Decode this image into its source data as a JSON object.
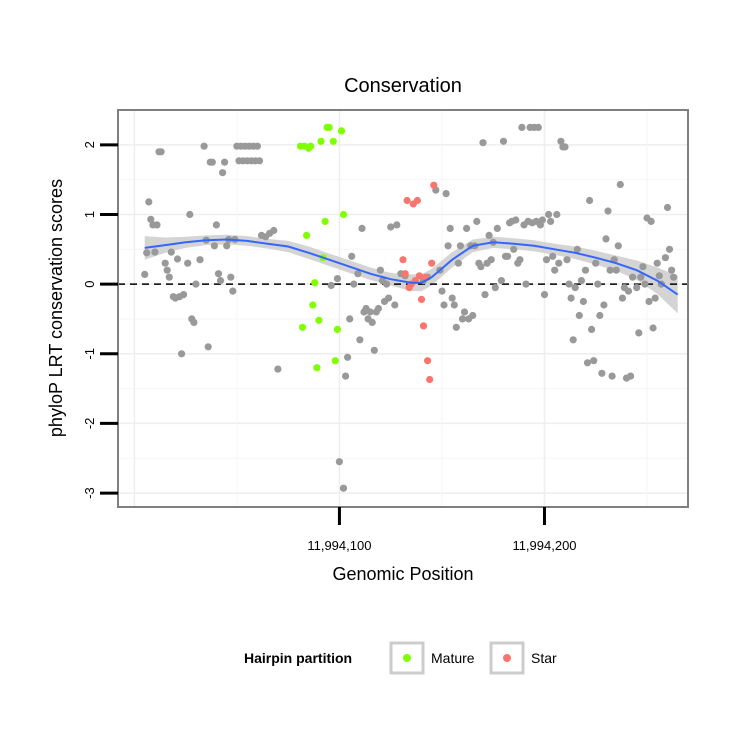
{
  "chart_data": {
    "type": "scatter",
    "title": "Conservation",
    "xlabel": "Genomic Position",
    "ylabel": "phyloP LRT conservation scores",
    "xlim": [
      11993992,
      11994270
    ],
    "ylim": [
      -3.2,
      2.5
    ],
    "x_ticks": [
      11994100,
      11994200
    ],
    "x_tick_labels": [
      "11,994,100",
      "11,994,200"
    ],
    "y_ticks": [
      -3,
      -2,
      -1,
      0,
      1,
      2
    ],
    "y_tick_labels": [
      "-3",
      "-2",
      "-1",
      "0",
      "1",
      "2"
    ],
    "reference_line": {
      "y": 0,
      "style": "dashed"
    },
    "grid": true,
    "legend": {
      "title": "Hairpin partition",
      "position": "bottom",
      "entries": [
        {
          "label": "Mature",
          "color": "#7fff00"
        },
        {
          "label": "Star",
          "color": "#f8766d"
        }
      ]
    },
    "colors": {
      "other": "#999999",
      "mature": "#7fff00",
      "star": "#f8766d",
      "smooth": "#3366ff",
      "ribbon": "#cccccc"
    },
    "series": [
      {
        "name": "Other",
        "points": [
          [
            11994005,
            0.14
          ],
          [
            11994006,
            0.45
          ],
          [
            11994007,
            1.18
          ],
          [
            11994008,
            0.93
          ],
          [
            11994009,
            0.85
          ],
          [
            11994010,
            0.46
          ],
          [
            11994011,
            0.85
          ],
          [
            11994012,
            1.9
          ],
          [
            11994013,
            1.9
          ],
          [
            11994015,
            0.3
          ],
          [
            11994016,
            0.2
          ],
          [
            11994017,
            0.1
          ],
          [
            11994018,
            0.46
          ],
          [
            11994019,
            -0.18
          ],
          [
            11994020,
            -0.2
          ],
          [
            11994021,
            0.36
          ],
          [
            11994022,
            -0.18
          ],
          [
            11994023,
            -1.0
          ],
          [
            11994024,
            -0.15
          ],
          [
            11994026,
            0.3
          ],
          [
            11994027,
            1.0
          ],
          [
            11994028,
            -0.5
          ],
          [
            11994029,
            -0.55
          ],
          [
            11994030,
            0.0
          ],
          [
            11994032,
            0.35
          ],
          [
            11994034,
            1.98
          ],
          [
            11994035,
            0.63
          ],
          [
            11994036,
            -0.9
          ],
          [
            11994037,
            1.75
          ],
          [
            11994038,
            1.75
          ],
          [
            11994039,
            0.55
          ],
          [
            11994040,
            0.85
          ],
          [
            11994041,
            0.15
          ],
          [
            11994042,
            0.05
          ],
          [
            11994043,
            1.6
          ],
          [
            11994044,
            1.75
          ],
          [
            11994045,
            0.55
          ],
          [
            11994046,
            0.64
          ],
          [
            11994047,
            0.1
          ],
          [
            11994048,
            -0.1
          ],
          [
            11994049,
            0.64
          ],
          [
            11994050,
            1.98
          ],
          [
            11994051,
            1.77
          ],
          [
            11994052,
            1.98
          ],
          [
            11994053,
            1.77
          ],
          [
            11994054,
            1.98
          ],
          [
            11994055,
            1.77
          ],
          [
            11994056,
            1.98
          ],
          [
            11994057,
            1.77
          ],
          [
            11994058,
            1.98
          ],
          [
            11994059,
            1.77
          ],
          [
            11994060,
            1.98
          ],
          [
            11994061,
            1.77
          ],
          [
            11994062,
            0.7
          ],
          [
            11994064,
            0.68
          ],
          [
            11994066,
            0.73
          ],
          [
            11994068,
            0.77
          ],
          [
            11994070,
            -1.22
          ],
          [
            11994096,
            -0.02
          ],
          [
            11994099,
            0.08
          ],
          [
            11994100,
            -2.55
          ],
          [
            11994102,
            -2.93
          ],
          [
            11994103,
            -1.32
          ],
          [
            11994104,
            -1.05
          ],
          [
            11994105,
            -0.5
          ],
          [
            11994106,
            0.4
          ],
          [
            11994107,
            0.0
          ],
          [
            11994109,
            0.15
          ],
          [
            11994110,
            -0.8
          ],
          [
            11994111,
            0.8
          ],
          [
            11994112,
            -0.4
          ],
          [
            11994113,
            -0.35
          ],
          [
            11994114,
            -0.5
          ],
          [
            11994115,
            -0.4
          ],
          [
            11994116,
            -0.55
          ],
          [
            11994117,
            -0.95
          ],
          [
            11994118,
            -0.4
          ],
          [
            11994119,
            -0.35
          ],
          [
            11994120,
            0.2
          ],
          [
            11994121,
            0.05
          ],
          [
            11994122,
            -0.25
          ],
          [
            11994123,
            0.0
          ],
          [
            11994124,
            -0.2
          ],
          [
            11994125,
            0.82
          ],
          [
            11994127,
            -0.3
          ],
          [
            11994128,
            0.85
          ],
          [
            11994130,
            0.15
          ],
          [
            11994132,
            0.12
          ],
          [
            11994141,
            0.05
          ],
          [
            11994143,
            0.1
          ],
          [
            11994147,
            1.35
          ],
          [
            11994149,
            0.2
          ],
          [
            11994150,
            -0.1
          ],
          [
            11994151,
            -0.3
          ],
          [
            11994152,
            1.3
          ],
          [
            11994153,
            0.55
          ],
          [
            11994154,
            0.8
          ],
          [
            11994155,
            -0.2
          ],
          [
            11994156,
            -0.3
          ],
          [
            11994157,
            -0.62
          ],
          [
            11994158,
            0.3
          ],
          [
            11994159,
            0.55
          ],
          [
            11994160,
            -0.5
          ],
          [
            11994161,
            -0.4
          ],
          [
            11994162,
            0.8
          ],
          [
            11994163,
            -0.5
          ],
          [
            11994164,
            0.55
          ],
          [
            11994165,
            -0.45
          ],
          [
            11994166,
            0.55
          ],
          [
            11994167,
            0.9
          ],
          [
            11994168,
            0.3
          ],
          [
            11994169,
            0.25
          ],
          [
            11994170,
            2.03
          ],
          [
            11994171,
            -0.15
          ],
          [
            11994172,
            0.3
          ],
          [
            11994173,
            0.7
          ],
          [
            11994174,
            0.35
          ],
          [
            11994175,
            0.6
          ],
          [
            11994176,
            -0.05
          ],
          [
            11994177,
            0.8
          ],
          [
            11994179,
            0.05
          ],
          [
            11994180,
            2.05
          ],
          [
            11994181,
            0.4
          ],
          [
            11994182,
            0.4
          ],
          [
            11994183,
            0.88
          ],
          [
            11994184,
            0.9
          ],
          [
            11994185,
            0.5
          ],
          [
            11994186,
            0.92
          ],
          [
            11994187,
            0.3
          ],
          [
            11994188,
            0.35
          ],
          [
            11994189,
            2.25
          ],
          [
            11994190,
            0.85
          ],
          [
            11994191,
            0.0
          ],
          [
            11994192,
            0.9
          ],
          [
            11994193,
            2.25
          ],
          [
            11994194,
            0.88
          ],
          [
            11994195,
            2.25
          ],
          [
            11994196,
            0.9
          ],
          [
            11994197,
            2.25
          ],
          [
            11994198,
            0.85
          ],
          [
            11994199,
            0.92
          ],
          [
            11994200,
            -0.15
          ],
          [
            11994201,
            0.35
          ],
          [
            11994202,
            1.0
          ],
          [
            11994203,
            0.9
          ],
          [
            11994204,
            0.4
          ],
          [
            11994205,
            0.2
          ],
          [
            11994206,
            1.0
          ],
          [
            11994207,
            0.3
          ],
          [
            11994208,
            2.05
          ],
          [
            11994209,
            1.97
          ],
          [
            11994210,
            1.97
          ],
          [
            11994211,
            0.35
          ],
          [
            11994212,
            0.0
          ],
          [
            11994213,
            -0.2
          ],
          [
            11994214,
            -0.8
          ],
          [
            11994215,
            -0.05
          ],
          [
            11994216,
            0.5
          ],
          [
            11994217,
            -0.45
          ],
          [
            11994218,
            0.05
          ],
          [
            11994219,
            -0.25
          ],
          [
            11994220,
            0.2
          ],
          [
            11994221,
            -1.13
          ],
          [
            11994222,
            1.2
          ],
          [
            11994223,
            -0.65
          ],
          [
            11994224,
            -1.1
          ],
          [
            11994225,
            0.3
          ],
          [
            11994226,
            0.0
          ],
          [
            11994227,
            -0.45
          ],
          [
            11994228,
            -1.28
          ],
          [
            11994229,
            -0.3
          ],
          [
            11994230,
            0.65
          ],
          [
            11994231,
            1.05
          ],
          [
            11994232,
            0.2
          ],
          [
            11994233,
            -1.32
          ],
          [
            11994234,
            0.35
          ],
          [
            11994235,
            0.2
          ],
          [
            11994236,
            0.55
          ],
          [
            11994237,
            1.43
          ],
          [
            11994238,
            -0.2
          ],
          [
            11994239,
            -0.05
          ],
          [
            11994240,
            -1.35
          ],
          [
            11994241,
            -0.1
          ],
          [
            11994242,
            -1.32
          ],
          [
            11994243,
            0.1
          ],
          [
            11994245,
            -0.05
          ],
          [
            11994246,
            -0.7
          ],
          [
            11994247,
            0.1
          ],
          [
            11994248,
            0.25
          ],
          [
            11994249,
            0.0
          ],
          [
            11994250,
            0.95
          ],
          [
            11994251,
            -0.25
          ],
          [
            11994252,
            0.9
          ],
          [
            11994253,
            -0.63
          ],
          [
            11994254,
            -0.2
          ],
          [
            11994255,
            0.3
          ],
          [
            11994256,
            0.12
          ],
          [
            11994257,
            0.0
          ],
          [
            11994259,
            0.38
          ],
          [
            11994260,
            1.1
          ],
          [
            11994261,
            0.5
          ],
          [
            11994262,
            0.2
          ],
          [
            11994263,
            0.1
          ]
        ]
      },
      {
        "name": "Mature",
        "points": [
          [
            11994081,
            1.98
          ],
          [
            11994082,
            -0.62
          ],
          [
            11994083,
            1.98
          ],
          [
            11994084,
            0.7
          ],
          [
            11994085,
            1.95
          ],
          [
            11994086,
            1.98
          ],
          [
            11994087,
            -0.3
          ],
          [
            11994088,
            0.02
          ],
          [
            11994089,
            -1.2
          ],
          [
            11994090,
            -0.52
          ],
          [
            11994091,
            2.05
          ],
          [
            11994092,
            0.38
          ],
          [
            11994093,
            0.9
          ],
          [
            11994094,
            2.25
          ],
          [
            11994095,
            2.25
          ],
          [
            11994097,
            2.05
          ],
          [
            11994098,
            -1.1
          ],
          [
            11994099,
            -0.65
          ],
          [
            11994101,
            2.2
          ],
          [
            11994102,
            1.0
          ]
        ]
      },
      {
        "name": "Star",
        "points": [
          [
            11994131,
            0.35
          ],
          [
            11994132,
            0.15
          ],
          [
            11994133,
            1.2
          ],
          [
            11994134,
            -0.05
          ],
          [
            11994135,
            0.0
          ],
          [
            11994136,
            1.15
          ],
          [
            11994137,
            0.05
          ],
          [
            11994138,
            1.2
          ],
          [
            11994139,
            0.12
          ],
          [
            11994140,
            -0.22
          ],
          [
            11994141,
            -0.6
          ],
          [
            11994142,
            0.1
          ],
          [
            11994143,
            -1.1
          ],
          [
            11994144,
            -1.37
          ],
          [
            11994145,
            0.3
          ],
          [
            11994146,
            1.42
          ]
        ]
      }
    ],
    "smooth": {
      "method": "loess",
      "x": [
        11994005,
        11994015,
        11994025,
        11994035,
        11994045,
        11994055,
        11994065,
        11994075,
        11994085,
        11994095,
        11994105,
        11994115,
        11994125,
        11994135,
        11994140,
        11994145,
        11994155,
        11994165,
        11994175,
        11994185,
        11994195,
        11994205,
        11994215,
        11994225,
        11994235,
        11994245,
        11994255,
        11994265
      ],
      "y": [
        0.52,
        0.56,
        0.6,
        0.63,
        0.64,
        0.62,
        0.58,
        0.54,
        0.45,
        0.35,
        0.25,
        0.15,
        0.07,
        0.02,
        0.02,
        0.1,
        0.35,
        0.55,
        0.6,
        0.58,
        0.55,
        0.5,
        0.45,
        0.38,
        0.3,
        0.2,
        0.05,
        -0.15
      ],
      "lo": [
        0.35,
        0.45,
        0.52,
        0.56,
        0.57,
        0.55,
        0.51,
        0.46,
        0.36,
        0.26,
        0.16,
        0.06,
        -0.02,
        -0.1,
        -0.1,
        -0.02,
        0.24,
        0.46,
        0.52,
        0.5,
        0.47,
        0.42,
        0.36,
        0.28,
        0.19,
        0.06,
        -0.14,
        -0.42
      ],
      "hi": [
        0.69,
        0.67,
        0.68,
        0.7,
        0.71,
        0.69,
        0.65,
        0.62,
        0.54,
        0.44,
        0.34,
        0.24,
        0.16,
        0.14,
        0.14,
        0.22,
        0.46,
        0.64,
        0.68,
        0.66,
        0.63,
        0.58,
        0.54,
        0.48,
        0.41,
        0.34,
        0.24,
        0.12
      ]
    }
  }
}
